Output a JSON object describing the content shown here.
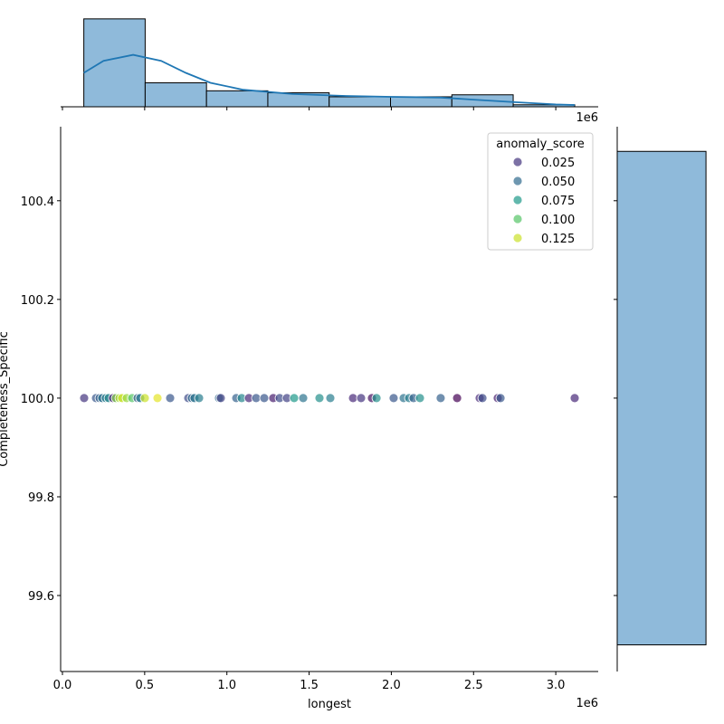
{
  "chart_data": {
    "type": "scatter",
    "xlabel": "longest",
    "ylabel": "Completeness_Specific",
    "x_offset_label": "1e6",
    "top_offset_label": "1e6",
    "xlim": [
      -0.011,
      3.258
    ],
    "ylim": [
      99.446,
      100.55
    ],
    "x_unit_scale": 1000000,
    "xticks": [
      0.0,
      0.5,
      1.0,
      1.5,
      2.0,
      2.5,
      3.0
    ],
    "xtick_labels": [
      "0.0",
      "0.5",
      "1.0",
      "1.5",
      "2.0",
      "2.5",
      "3.0"
    ],
    "yticks": [
      99.6,
      99.8,
      100.0,
      100.2,
      100.4
    ],
    "ytick_labels": [
      "99.6",
      "99.8",
      "100.0",
      "100.2",
      "100.4"
    ],
    "hue": "anomaly_score",
    "hue_range": [
      0.005,
      0.135
    ],
    "legend": {
      "title": "anomaly_score",
      "placement": "top-right",
      "entries": [
        {
          "label": "0.025",
          "value": 0.025
        },
        {
          "label": "0.050",
          "value": 0.05
        },
        {
          "label": "0.075",
          "value": 0.075
        },
        {
          "label": "0.100",
          "value": 0.1
        },
        {
          "label": "0.125",
          "value": 0.125
        }
      ]
    },
    "points": [
      {
        "x": 0.132,
        "y": 100,
        "s": 0.025
      },
      {
        "x": 0.204,
        "y": 100,
        "s": 0.04
      },
      {
        "x": 0.226,
        "y": 100,
        "s": 0.045
      },
      {
        "x": 0.242,
        "y": 100,
        "s": 0.055
      },
      {
        "x": 0.264,
        "y": 100,
        "s": 0.06
      },
      {
        "x": 0.281,
        "y": 100,
        "s": 0.065
      },
      {
        "x": 0.308,
        "y": 100,
        "s": 0.015
      },
      {
        "x": 0.325,
        "y": 100,
        "s": 0.11
      },
      {
        "x": 0.347,
        "y": 100,
        "s": 0.12
      },
      {
        "x": 0.363,
        "y": 100,
        "s": 0.125
      },
      {
        "x": 0.391,
        "y": 100,
        "s": 0.115
      },
      {
        "x": 0.424,
        "y": 100,
        "s": 0.1
      },
      {
        "x": 0.457,
        "y": 100,
        "s": 0.04
      },
      {
        "x": 0.473,
        "y": 100,
        "s": 0.06
      },
      {
        "x": 0.501,
        "y": 100,
        "s": 0.125
      },
      {
        "x": 0.578,
        "y": 100,
        "s": 0.13
      },
      {
        "x": 0.655,
        "y": 100,
        "s": 0.04
      },
      {
        "x": 0.765,
        "y": 100,
        "s": 0.035
      },
      {
        "x": 0.787,
        "y": 100,
        "s": 0.05
      },
      {
        "x": 0.803,
        "y": 100,
        "s": 0.055
      },
      {
        "x": 0.831,
        "y": 100,
        "s": 0.06
      },
      {
        "x": 0.952,
        "y": 100,
        "s": 0.05
      },
      {
        "x": 0.963,
        "y": 100,
        "s": 0.03
      },
      {
        "x": 1.057,
        "y": 100,
        "s": 0.045
      },
      {
        "x": 1.09,
        "y": 100,
        "s": 0.065
      },
      {
        "x": 1.134,
        "y": 100,
        "s": 0.02
      },
      {
        "x": 1.178,
        "y": 100,
        "s": 0.04
      },
      {
        "x": 1.227,
        "y": 100,
        "s": 0.04
      },
      {
        "x": 1.282,
        "y": 100,
        "s": 0.015
      },
      {
        "x": 1.321,
        "y": 100,
        "s": 0.035
      },
      {
        "x": 1.365,
        "y": 100,
        "s": 0.03
      },
      {
        "x": 1.409,
        "y": 100,
        "s": 0.075
      },
      {
        "x": 1.464,
        "y": 100,
        "s": 0.055
      },
      {
        "x": 1.563,
        "y": 100,
        "s": 0.07
      },
      {
        "x": 1.629,
        "y": 100,
        "s": 0.06
      },
      {
        "x": 1.767,
        "y": 100,
        "s": 0.02
      },
      {
        "x": 1.816,
        "y": 100,
        "s": 0.025
      },
      {
        "x": 1.882,
        "y": 100,
        "s": 0.01
      },
      {
        "x": 1.91,
        "y": 100,
        "s": 0.07
      },
      {
        "x": 2.014,
        "y": 100,
        "s": 0.04
      },
      {
        "x": 2.075,
        "y": 100,
        "s": 0.055
      },
      {
        "x": 2.108,
        "y": 100,
        "s": 0.06
      },
      {
        "x": 2.135,
        "y": 100,
        "s": 0.045
      },
      {
        "x": 2.174,
        "y": 100,
        "s": 0.07
      },
      {
        "x": 2.3,
        "y": 100,
        "s": 0.045
      },
      {
        "x": 2.4,
        "y": 100,
        "s": 0.005
      },
      {
        "x": 2.537,
        "y": 100,
        "s": 0.02
      },
      {
        "x": 2.554,
        "y": 100,
        "s": 0.035
      },
      {
        "x": 2.647,
        "y": 100,
        "s": 0.015
      },
      {
        "x": 2.664,
        "y": 100,
        "s": 0.04
      },
      {
        "x": 3.115,
        "y": 100,
        "s": 0.02
      }
    ],
    "top_hist": {
      "bin_edges": [
        0.13,
        0.503,
        0.876,
        1.249,
        1.622,
        1.995,
        2.368,
        2.741,
        3.115
      ],
      "counts": [
        44,
        12,
        8,
        7,
        5,
        5,
        6,
        1
      ],
      "ylim": [
        0,
        46.2
      ],
      "kde": {
        "x": [
          0.13,
          0.25,
          0.43,
          0.6,
          0.75,
          0.9,
          1.1,
          1.4,
          1.7,
          2.0,
          2.3,
          2.5,
          2.75,
          3.0,
          3.115
        ],
        "y": [
          17,
          23,
          26,
          23,
          17,
          12,
          8.5,
          6.4,
          5.5,
          5,
          4.6,
          3.6,
          2.3,
          1.2,
          0.9
        ]
      }
    },
    "right_hist": {
      "bin_edges": [
        99.5,
        100.5
      ],
      "counts": [
        1
      ],
      "xlim": [
        0,
        1.05
      ]
    },
    "colors": {
      "bar_fill": "#8fbada",
      "bar_edge": "#000000",
      "kde_line": "#1f77b4"
    }
  }
}
